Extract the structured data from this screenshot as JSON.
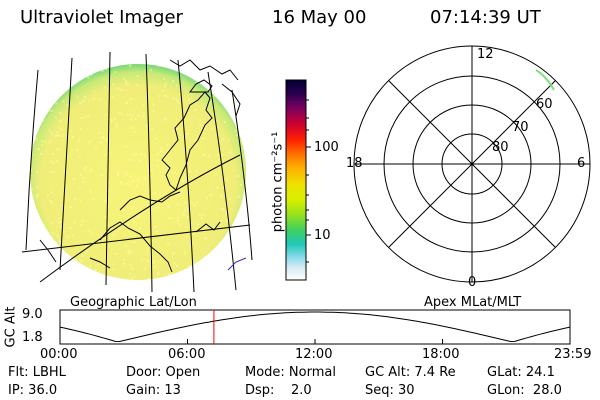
{
  "header": {
    "instrument": "Ultraviolet Imager",
    "date": "16 May 00",
    "time": "07:14:39 UT"
  },
  "colorbar": {
    "unit_label": "photon cm⁻²s⁻¹",
    "ticks": [
      "100",
      "10"
    ],
    "stops": [
      "#000033",
      "#2a0050",
      "#7a0060",
      "#cc0030",
      "#ff2000",
      "#ff7000",
      "#ffb000",
      "#f0e000",
      "#d8f000",
      "#90e020",
      "#40d060",
      "#20c8b8",
      "#80d8e8",
      "#d8ecf4",
      "#ffffff"
    ]
  },
  "polar": {
    "mlt_labels": {
      "top": "12",
      "left": "18",
      "right": "6",
      "bottom": "0"
    },
    "lat_labels": [
      "60",
      "70",
      "80"
    ]
  },
  "captions": {
    "left": "Geographic Lat/Lon",
    "right": "Apex MLat/MLT"
  },
  "orbit": {
    "ylabel": "GC Alt",
    "y_ticks": [
      "9.0",
      "1.8"
    ],
    "x_ticks": [
      "00:00",
      "06:00",
      "12:00",
      "18:00",
      "23:59"
    ],
    "marker_hours": 7.24
  },
  "info": {
    "row1": [
      "Flt: LBHL",
      "Door: Open",
      "Mode: Normal",
      "GC Alt: 7.4 Re",
      "GLat:  24.1"
    ],
    "row2": [
      "IP: 36.0",
      "Gain: 13",
      "Dsp:    2.0",
      "Seq: 30",
      "GLon:  28.0"
    ]
  },
  "colors": {
    "disk_fill": "#f4f07a",
    "disk_limb": "#7cd87c",
    "marker": "#ff0000",
    "aurora": "#80e080"
  }
}
